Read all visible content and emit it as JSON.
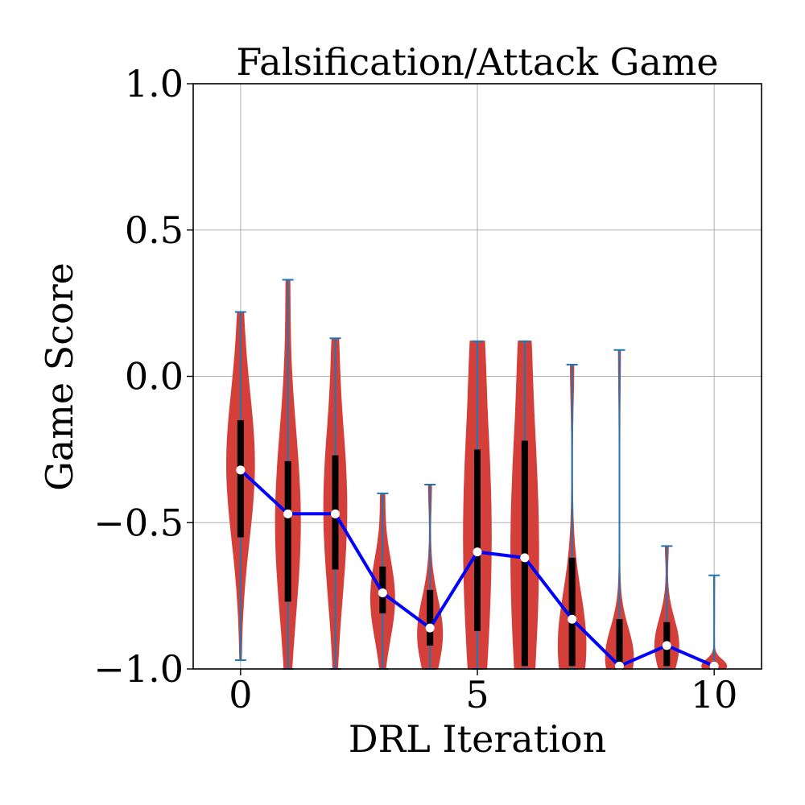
{
  "chart_data": {
    "type": "violin",
    "title": "Falsification/Attack Game",
    "xlabel": "DRL Iteration",
    "ylabel": "Game Score",
    "xlim": [
      -1,
      11
    ],
    "ylim": [
      -1.0,
      1.0
    ],
    "xticks": [
      0,
      5,
      10
    ],
    "xtick_labels": [
      "0",
      "5",
      "10"
    ],
    "yticks": [
      -1.0,
      -0.5,
      0.0,
      0.5,
      1.0
    ],
    "ytick_labels": [
      "−1.0",
      "−0.5",
      "0.0",
      "0.5",
      "1.0"
    ],
    "grid": true,
    "colors": {
      "violin": "#d43f3a",
      "whisker": "#1f77b4",
      "iqr": "#000000",
      "median_line": "#0000ff",
      "median_marker": "#ffffff"
    },
    "violins": [
      {
        "x": 0,
        "min": -0.97,
        "max": 0.22,
        "q1": -0.55,
        "q3": -0.15,
        "median": -0.32,
        "maxwidth": 0.29,
        "peak": -0.3,
        "spread": 0.26,
        "tail": 0.07
      },
      {
        "x": 1,
        "min": -1.0,
        "max": 0.33,
        "q1": -0.77,
        "q3": -0.29,
        "median": -0.47,
        "maxwidth": 0.26,
        "peak": -0.5,
        "spread": 0.32,
        "tail": 0.1
      },
      {
        "x": 2,
        "min": -1.0,
        "max": 0.13,
        "q1": -0.66,
        "q3": -0.27,
        "median": -0.47,
        "maxwidth": 0.24,
        "peak": -0.45,
        "spread": 0.3,
        "tail": 0.12
      },
      {
        "x": 3,
        "min": -1.0,
        "max": -0.4,
        "q1": -0.81,
        "q3": -0.65,
        "median": -0.74,
        "maxwidth": 0.25,
        "peak": -0.76,
        "spread": 0.14,
        "tail": 0.12
      },
      {
        "x": 4,
        "min": -1.0,
        "max": -0.37,
        "q1": -0.92,
        "q3": -0.73,
        "median": -0.86,
        "maxwidth": 0.26,
        "peak": -0.88,
        "spread": 0.12,
        "tail": 0.1
      },
      {
        "x": 5,
        "min": -1.0,
        "max": 0.12,
        "q1": -0.87,
        "q3": -0.25,
        "median": -0.6,
        "maxwidth": 0.29,
        "peak": -0.55,
        "spread": 0.5,
        "tail": 0.1
      },
      {
        "x": 6,
        "min": -1.0,
        "max": 0.12,
        "q1": -0.99,
        "q3": -0.22,
        "median": -0.62,
        "maxwidth": 0.29,
        "peak": -0.6,
        "spread": 0.5,
        "tail": 0.1
      },
      {
        "x": 7,
        "min": -1.0,
        "max": 0.04,
        "q1": -0.99,
        "q3": -0.62,
        "median": -0.83,
        "maxwidth": 0.29,
        "peak": -0.92,
        "spread": 0.18,
        "tail": 0.1
      },
      {
        "x": 8,
        "min": -1.0,
        "max": 0.09,
        "q1": -0.99,
        "q3": -0.83,
        "median": -0.99,
        "maxwidth": 0.29,
        "peak": -0.96,
        "spread": 0.1,
        "tail": 0.05
      },
      {
        "x": 9,
        "min": -1.0,
        "max": -0.58,
        "q1": -0.99,
        "q3": -0.84,
        "median": -0.92,
        "maxwidth": 0.25,
        "peak": -0.92,
        "spread": 0.09,
        "tail": 0.1
      },
      {
        "x": 10,
        "min": -1.0,
        "max": -0.68,
        "q1": -1.0,
        "q3": -0.99,
        "median": -0.99,
        "maxwidth": 0.26,
        "peak": -0.99,
        "spread": 0.022,
        "tail": 0.02
      }
    ]
  }
}
